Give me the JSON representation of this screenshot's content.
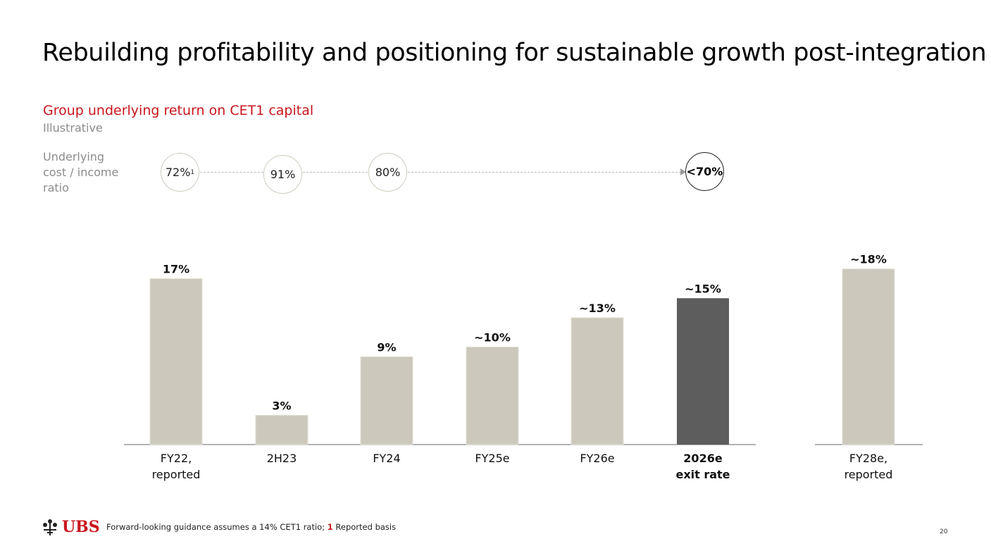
{
  "title": "Rebuilding profitability and positioning for sustainable growth post-integration",
  "subtitle": "Group underlying return on CET1 capital",
  "illustrative": "Illustrative",
  "ratio_label": [
    "Underlying",
    "cost / income",
    "ratio"
  ],
  "cost_income": [
    {
      "value": "72%",
      "footnote": "1",
      "emphasis": false
    },
    {
      "value": "91%",
      "footnote": "",
      "emphasis": false
    },
    {
      "value": "80%",
      "footnote": "",
      "emphasis": false
    },
    {
      "value": "<70%",
      "footnote": "",
      "emphasis": true
    }
  ],
  "chart_data": {
    "type": "bar",
    "title": "Group underlying return on CET1 capital",
    "xlabel": "",
    "ylabel": "",
    "ylim": [
      0,
      20
    ],
    "categories": [
      {
        "label": [
          "FY22,",
          "reported"
        ],
        "value": 17,
        "display": "17%",
        "bold": false,
        "highlight": false,
        "group": 1
      },
      {
        "label": [
          "2H23"
        ],
        "value": 3,
        "display": "3%",
        "bold": false,
        "highlight": false,
        "group": 1
      },
      {
        "label": [
          "FY24"
        ],
        "value": 9,
        "display": "9%",
        "bold": false,
        "highlight": false,
        "group": 1
      },
      {
        "label": [
          "FY25e"
        ],
        "value": 10,
        "display": "~10%",
        "bold": false,
        "highlight": false,
        "group": 1
      },
      {
        "label": [
          "FY26e"
        ],
        "value": 13,
        "display": "~13%",
        "bold": false,
        "highlight": false,
        "group": 1
      },
      {
        "label": [
          "2026e",
          "exit rate"
        ],
        "value": 15,
        "display": "~15%",
        "bold": true,
        "highlight": true,
        "group": 1
      },
      {
        "label": [
          "FY28e,",
          "reported"
        ],
        "value": 18,
        "display": "~18%",
        "bold": false,
        "highlight": false,
        "group": 2
      }
    ],
    "colors": {
      "bar": "#ccc9bc",
      "highlight": "#5c5d5c",
      "axis": "#9a9a9a"
    }
  },
  "footer": {
    "logo_text": "UBS",
    "note": "Forward-looking guidance assumes a 14% CET1 ratio;",
    "note_ref": "1",
    "note_ref_text": "Reported basis",
    "page": "20"
  }
}
